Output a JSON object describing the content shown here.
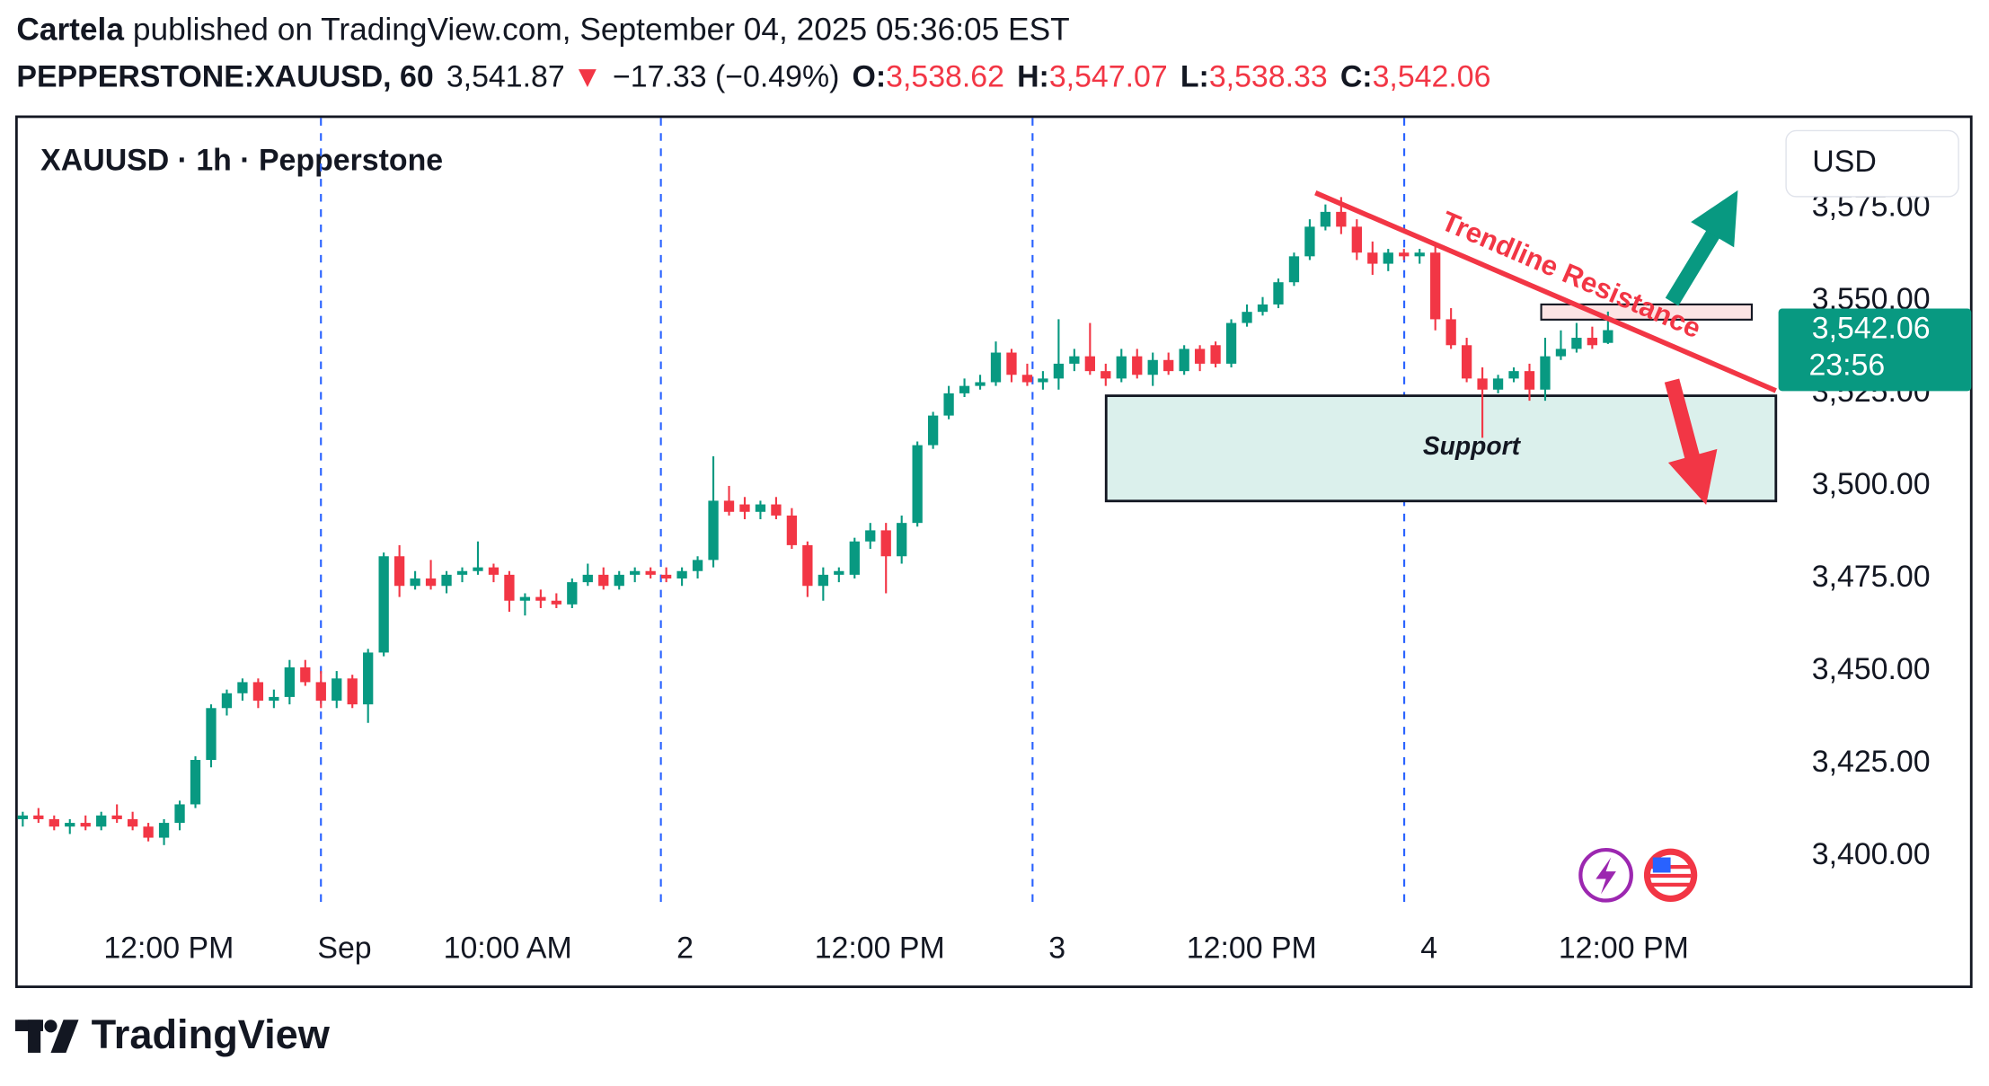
{
  "header": {
    "author": "Cartela",
    "published": "published on TradingView.com, September 04, 2025 05:36:05 EST",
    "symbol": "PEPPERSTONE:XAUUSD, 60",
    "last": "3,541.87",
    "change_arrow": "▼",
    "change": "−17.33 (−0.49%)",
    "ohlc": [
      {
        "label": "O:",
        "value": "3,538.62"
      },
      {
        "label": "H:",
        "value": "3,547.07"
      },
      {
        "label": "L:",
        "value": "3,538.33"
      },
      {
        "label": "C:",
        "value": "3,542.06"
      }
    ]
  },
  "chart_data": {
    "type": "candlestick",
    "title": "XAUUSD · 1h · Pepperstone",
    "currency": "USD",
    "up_color": "#089981",
    "down_color": "#f23645",
    "open": [
      3410,
      3411,
      3410,
      3408,
      3409,
      3408,
      3411,
      3410,
      3408,
      3405,
      3409,
      3414,
      3426,
      3440,
      3444,
      3447,
      3442,
      3443,
      3451,
      3447,
      3442,
      3448,
      3441,
      3455,
      3481,
      3473,
      3475,
      3473,
      3476,
      3477,
      3478,
      3476,
      3469,
      3470,
      3469,
      3468,
      3474,
      3476,
      3473,
      3476,
      3477,
      3476,
      3475,
      3477,
      3480,
      3496,
      3495,
      3493,
      3495,
      3492,
      3484,
      3473,
      3476,
      3476,
      3485,
      3488,
      3481,
      3490,
      3511,
      3519,
      3525,
      3527,
      3528,
      3536,
      3530,
      3528,
      3529,
      3533,
      3535,
      3531,
      3529,
      3535,
      3530,
      3534,
      3531,
      3537,
      3538,
      3533,
      3544,
      3547,
      3549,
      3555,
      3562,
      3570,
      3574,
      3570,
      3563,
      3560,
      3563,
      3562,
      3563,
      3545,
      3538,
      3529,
      3526,
      3529,
      3531,
      3526,
      3535,
      3537,
      3540,
      3538.62
    ],
    "high": [
      3412,
      3413,
      3411,
      3410,
      3411,
      3412,
      3414,
      3412,
      3409,
      3410,
      3415,
      3427,
      3441,
      3445,
      3448,
      3448,
      3445,
      3453,
      3453,
      3450,
      3450,
      3449,
      3456,
      3482,
      3484,
      3477,
      3480,
      3477,
      3478,
      3485,
      3479,
      3477,
      3471,
      3472,
      3471,
      3475,
      3479,
      3478,
      3477,
      3478,
      3478,
      3478,
      3478,
      3481,
      3508,
      3500,
      3497,
      3496,
      3497,
      3494,
      3485,
      3478,
      3478,
      3486,
      3490,
      3490,
      3492,
      3512,
      3520,
      3527,
      3529,
      3530,
      3539,
      3537,
      3533,
      3531,
      3545,
      3537,
      3544,
      3533,
      3537,
      3537,
      3536,
      3536,
      3538,
      3538,
      3539,
      3545,
      3549,
      3551,
      3556,
      3563,
      3572,
      3576,
      3578,
      3572,
      3566,
      3564,
      3564,
      3564,
      3565,
      3548,
      3540,
      3532,
      3530,
      3532,
      3533,
      3540,
      3542,
      3544,
      3543,
      3547.07
    ],
    "low": [
      3408,
      3409,
      3407,
      3406,
      3407,
      3407,
      3409,
      3407,
      3404,
      3403,
      3407,
      3413,
      3424,
      3438,
      3442,
      3440,
      3440,
      3441,
      3446,
      3440,
      3440,
      3440,
      3436,
      3454,
      3470,
      3472,
      3472,
      3471,
      3474,
      3476,
      3474,
      3466,
      3465,
      3467,
      3467,
      3467,
      3473,
      3472,
      3472,
      3474,
      3475,
      3474,
      3473,
      3475,
      3478,
      3492,
      3491,
      3491,
      3491,
      3483,
      3470,
      3469,
      3474,
      3475,
      3483,
      3471,
      3479,
      3489,
      3510,
      3518,
      3524,
      3526,
      3527,
      3528,
      3527,
      3526,
      3526,
      3531,
      3530,
      3527,
      3528,
      3529,
      3527,
      3530,
      3530,
      3531,
      3532,
      3532,
      3543,
      3546,
      3548,
      3554,
      3561,
      3569,
      3568,
      3561,
      3557,
      3558,
      3561,
      3560,
      3542,
      3537,
      3528,
      3513,
      3525,
      3528,
      3523,
      3523,
      3534,
      3536,
      3537,
      3538.33
    ],
    "close": [
      3411,
      3410,
      3408,
      3409,
      3408,
      3411,
      3410,
      3408,
      3405,
      3409,
      3414,
      3426,
      3440,
      3444,
      3447,
      3442,
      3443,
      3451,
      3447,
      3442,
      3448,
      3441,
      3455,
      3481,
      3473,
      3475,
      3473,
      3476,
      3477,
      3478,
      3476,
      3469,
      3470,
      3469,
      3468,
      3474,
      3476,
      3473,
      3476,
      3477,
      3476,
      3475,
      3477,
      3480,
      3496,
      3493,
      3493,
      3495,
      3492,
      3484,
      3473,
      3476,
      3477,
      3485,
      3488,
      3481,
      3490,
      3511,
      3519,
      3525,
      3527,
      3528,
      3536,
      3530,
      3528,
      3529,
      3533,
      3535,
      3531,
      3529,
      3535,
      3530,
      3534,
      3531,
      3537,
      3533,
      3533,
      3544,
      3547,
      3549,
      3555,
      3562,
      3570,
      3574,
      3570,
      3563,
      3560,
      3563,
      3562,
      3563,
      3545,
      3538,
      3529,
      3526,
      3529,
      3531,
      3526,
      3535,
      3537,
      3540,
      3538,
      3542.06
    ],
    "xlim": [
      -0.4,
      111.7
    ],
    "xticks": [
      {
        "value": 9.3,
        "label": "12:00 PM"
      },
      {
        "value": 20.5,
        "label": "Sep"
      },
      {
        "value": 30.9,
        "label": "10:00 AM"
      },
      {
        "value": 42.2,
        "label": "2"
      },
      {
        "value": 54.6,
        "label": "12:00 PM"
      },
      {
        "value": 65.9,
        "label": "3"
      },
      {
        "value": 78.3,
        "label": "12:00 PM"
      },
      {
        "value": 89.6,
        "label": "4"
      },
      {
        "value": 102,
        "label": "12:00 PM"
      }
    ],
    "ylim": [
      3384.6,
      3599.7
    ],
    "yticks": [
      {
        "value": 3400,
        "label": "3,400.00"
      },
      {
        "value": 3425,
        "label": "3,425.00"
      },
      {
        "value": 3450,
        "label": "3,450.00"
      },
      {
        "value": 3475,
        "label": "3,475.00"
      },
      {
        "value": 3500,
        "label": "3,500.00"
      },
      {
        "value": 3525,
        "label": "3,525.00"
      },
      {
        "value": 3550,
        "label": "3,550.00"
      },
      {
        "value": 3575,
        "label": "3,575.00"
      }
    ],
    "last_price": {
      "value": 3542.06,
      "label": "3,542.06"
    },
    "countdown": "23:56",
    "annotations": {
      "trendline": "Trendline Resistance",
      "support": "Support"
    }
  },
  "footer": {
    "logo": "TradingView"
  }
}
